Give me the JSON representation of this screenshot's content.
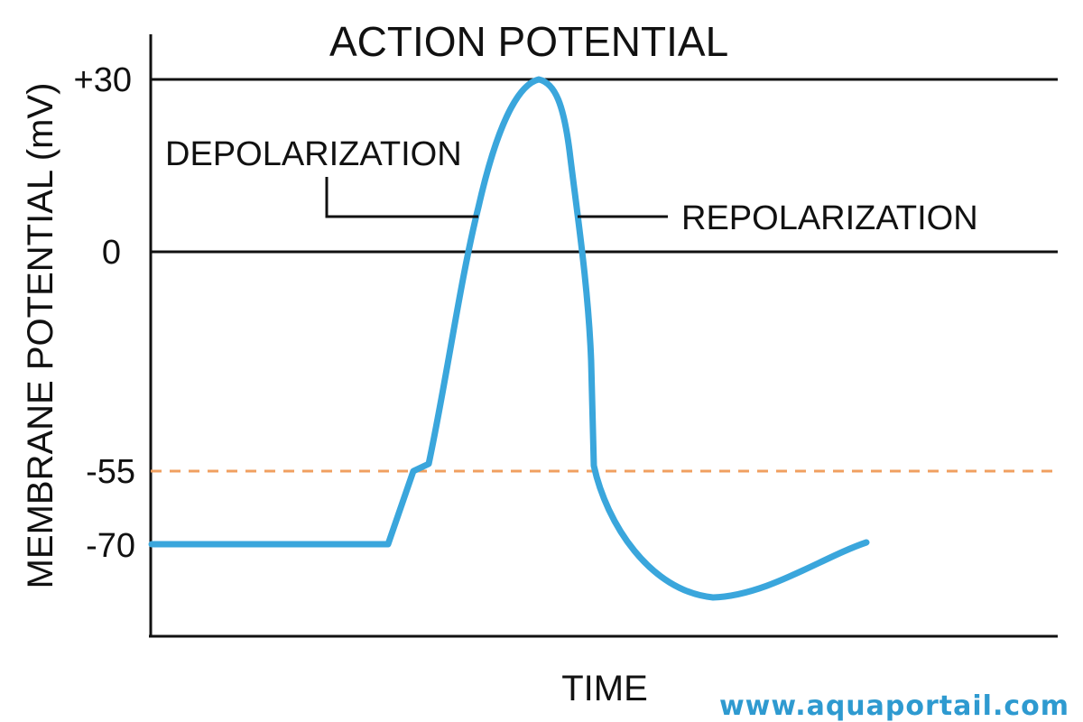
{
  "title": "ACTION POTENTIAL",
  "y_axis_label": "MEMBRANE POTENTIAL (mV)",
  "x_axis_label": "TIME",
  "y_ticks": [
    "+30",
    "0",
    "-55",
    "-70"
  ],
  "annotations": {
    "depolarization": "DEPOLARIZATION",
    "repolarization": "REPOLARIZATION"
  },
  "watermark": "www.aquaportail.com",
  "colors": {
    "curve": "#3AA6DC",
    "threshold_line": "#F0A060",
    "axis": "#111111",
    "watermark": "#2E9AD0"
  }
}
